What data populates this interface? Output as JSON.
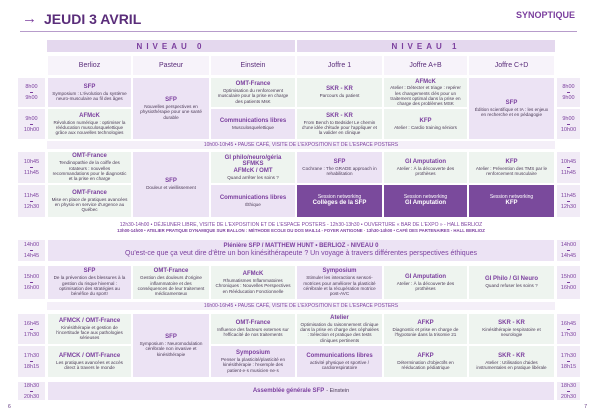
{
  "header": {
    "date": "JEUDI 3 AVRIL",
    "section": "SYNOPTIQUE"
  },
  "levels": [
    "NIVEAU 0",
    "NIVEAU 1"
  ],
  "rooms": [
    "Berlioz",
    "Pasteur",
    "Einstein",
    "Joffre 1",
    "Joffre A+B",
    "Joffre C+D"
  ],
  "time_slots": [
    {
      "start": "8h00",
      "end": "9h00"
    },
    {
      "start": "9h00",
      "end": "10h00"
    },
    {
      "start": "10h45",
      "end": "11h45"
    },
    {
      "start": "11h45",
      "end": "12h30"
    },
    {
      "start": "14h00",
      "end": "14h45"
    },
    {
      "start": "15h00",
      "end": "16h00"
    },
    {
      "start": "16h45",
      "end": "17h30"
    },
    {
      "start": "17h30",
      "end": "18h15"
    },
    {
      "start": "18h30",
      "end": "20h30"
    }
  ],
  "sessions": [
    {
      "title": "SFP",
      "text": "Symposium : L'évolution du système neuro-musculaire au fil des âges"
    },
    {
      "title": "AFMcK",
      "text": "Révolution numérique : optimiser la rééducation musculosquelettique grâce aux nouvelles technologies"
    },
    {
      "title": "SFP",
      "text": "Nouvelles perspectives en physiothérapie pour une santé durable"
    },
    {
      "title": "OMT-France",
      "text": "Optimisation du renforcement musculaire pour la prise en charge des patients MsK"
    },
    {
      "title": "Communications libres",
      "text": "Musculosquelettique"
    },
    {
      "title": "SKR - KR",
      "text": "Parcours du patient"
    },
    {
      "title": "SKR - KR",
      "text": "From Bench to Bedside! Le chemin d'une idée d'étude pour l'appliquer et la valider en clinique"
    },
    {
      "title": "AFMcK",
      "text": "Atelier : Détecter et triage : repérer les changements clés pour un traitement optimal dans la prise en charge des problèmes MSK"
    },
    {
      "title": "KFP",
      "text": "Atelier : Cardio training séniors"
    },
    {
      "title": "SFP",
      "text": "Édition scientifique et IA : les enjeux en recherche et en pédagogie"
    },
    {
      "title": "OMT-France",
      "text": "Tendinopathie de la coiffe des rotateurs : nouvelles recommandations pour le diagnostic et la prise en charge"
    },
    {
      "title": "OMT-France",
      "text": "Mise en place de pratiques avancées en physio en service d'urgence au Québec"
    },
    {
      "title": "SFP",
      "text": "Douleur et vieillissement"
    },
    {
      "title": "GI philo/neuro/géria SFMKS",
      "subtitle": "AFMcK / OMT",
      "text": "Quand arrêter les soins ?"
    },
    {
      "title": "Communications libres",
      "text": "Éthique"
    },
    {
      "title": "SFP",
      "text": "Cochrane : The GRADE approach in rehabilitation"
    },
    {
      "title": "Session networking",
      "text": "Collèges de la SFP"
    },
    {
      "title": "GI Amputation",
      "text": "Atelier : À la découverte des prothèses"
    },
    {
      "title": "Session networking",
      "text": "GI Amputation"
    },
    {
      "title": "KFP",
      "text": "Atelier : Prévention des TMS par le renforcement musculaire"
    },
    {
      "title": "Session networking",
      "text": "KFP"
    },
    {
      "title": "SFP",
      "text": "De la prévention des blessures à la gestion du risque hivernal : optimisation des stratégies au bénéfice du sport!"
    },
    {
      "title": "OMT-France",
      "text": "Gestion des douleurs d'origine inflammatoire et des conséquences de leur traitement médicamenteux"
    },
    {
      "title": "AFMcK",
      "text": "Rhumatismes Inflammatoires Chroniques : Nouvelles Perspectives en Rééducation Fonctionnelle"
    },
    {
      "title": "Symposium",
      "text": "Stimuler les interactions sensori-motrices pour améliorer la plasticité cérébrale et la récupération motrice post-AVC"
    },
    {
      "title": "GI Amputation",
      "text": "Atelier : À la découverte des prothèses"
    },
    {
      "title": "GI Philo / GI Neuro",
      "text": "Quand refuser les soins ?"
    },
    {
      "title": "AFMCK / OMT-France",
      "text": "Kinésithérapie et gestion de l'incertitude face aux pathologies sérieuses"
    },
    {
      "title": "AFMCK / OMT-France",
      "text": "Les pratiques avancées et accès direct à travers le monde"
    },
    {
      "title": "SFP",
      "text": "Symposium : Neuromodulation cérébrale non invasive et kinésithérapie"
    },
    {
      "title": "OMT-France",
      "text": "Influence des facteurs externes sur l'efficacité de nos traitements"
    },
    {
      "title": "Symposium",
      "text": "Penser la plasticité/plasticité en kinésithérapie : l'exemple des patient·e·s musicien·ne·s"
    },
    {
      "title": "Atelier",
      "text": "Optimisation du raisonnement clinique dans la prise en charge des céphalées : Sélection et pratique des tests cliniques pertinents"
    },
    {
      "title": "Communications libres",
      "text": "activité physique et sportive / cardiorespiratoire"
    },
    {
      "title": "AFKP",
      "text": "Diagnostic et prise en charge de l'hypotonie dans la trisomie 21"
    },
    {
      "title": "AFKP",
      "text": "Détermination d'objectifs en rééducation pédiatrique"
    },
    {
      "title": "SKR - KR",
      "text": "Kinésithérapie respiratoire et neurologie"
    },
    {
      "title": "SKR - KR",
      "text": "Atelier : Utilisation d'aides instrumentales en pratique libérale"
    }
  ],
  "breaks": [
    "10h00-10h45 • PAUSE CAFÉ, VISITE DE L'EXPOSITION ET DE L'ESPACE POSTERS",
    "16h00-16h45 • PAUSE CAFÉ, VISITE DE L'EXPOSITION ET DE L'ESPACE POSTERS"
  ],
  "lunch": [
    "12h30-14h00 • DÉJEUNER LIBRE, VISITE DE L'EXPOSITION ET DE L'ESPACE POSTERS - 12h30-13h30 • OUVERTURE « BAR DE L'EXPO » - HALL BERLIOZ",
    "13h00-14h00 • ATELIER PRATIQUE DYNAMIQUE SUR BALLON : MÉTHODE ECOLE DU DOS MAIL14 - FOYER ANTIGONE · 13h30-14h00 • CAFÉ DES PARTENAIRES - HALL BERLIOZ"
  ],
  "plenary": {
    "title": "Plénière SFP / MATTHEW HUNT • BERLIOZ - NIVEAU 0",
    "text": "Qu'est-ce que ça veut dire d'être un bon kinésithérapeute ? Un voyage à travers différentes perspectives éthiques"
  },
  "assembly": {
    "title": "Assemblée générale SFP",
    "room": "- Einstein"
  },
  "page_numbers": [
    "6",
    "7"
  ]
}
